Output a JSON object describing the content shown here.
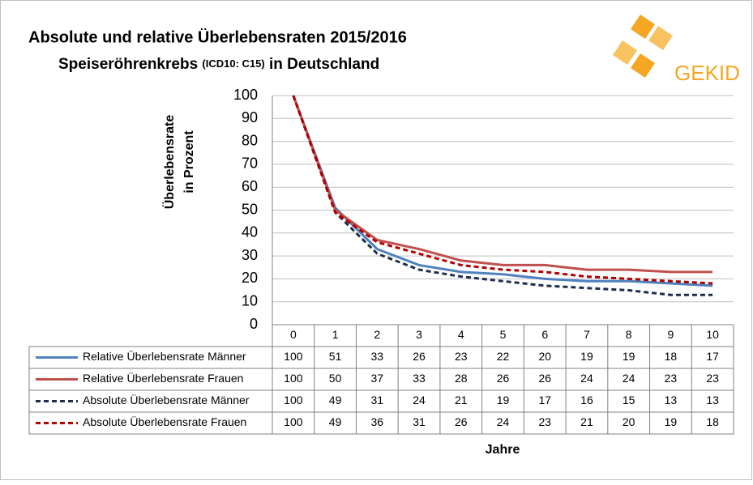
{
  "chart_data": {
    "type": "line",
    "title": "Absolute und relative Überlebensraten 2015/2016",
    "subtitle": [
      "Speiseröhrenkrebs",
      "(ICD10: C15)",
      "in Deutschland"
    ],
    "ylabel": [
      "Überlebensrate",
      "in Prozent"
    ],
    "xlabel": "Jahre",
    "logo": "GEKID",
    "categories": [
      "0",
      "1",
      "2",
      "3",
      "4",
      "5",
      "6",
      "7",
      "8",
      "9",
      "10"
    ],
    "ylim": [
      0,
      100
    ],
    "yticks": [
      0,
      10,
      20,
      30,
      40,
      50,
      60,
      70,
      80,
      90,
      100
    ],
    "grid": true,
    "series": [
      {
        "name": "Relative Überlebensrate Männer",
        "color": "#4f81bd",
        "dashed": false,
        "values": [
          100,
          51,
          33,
          26,
          23,
          22,
          20,
          19,
          19,
          18,
          17
        ]
      },
      {
        "name": "Relative Überlebensrate Frauen",
        "color": "#c0504d",
        "dashed": false,
        "values": [
          100,
          50,
          37,
          33,
          28,
          26,
          26,
          24,
          24,
          23,
          23
        ]
      },
      {
        "name": "Absolute Überlebensrate Männer",
        "color": "#1f2d4f",
        "dashed": true,
        "values": [
          100,
          49,
          31,
          24,
          21,
          19,
          17,
          16,
          15,
          13,
          13
        ]
      },
      {
        "name": "Absolute Überlebensrate Frauen",
        "color": "#b00000",
        "dashed": true,
        "values": [
          100,
          49,
          36,
          31,
          26,
          24,
          23,
          21,
          20,
          19,
          18
        ]
      }
    ]
  }
}
